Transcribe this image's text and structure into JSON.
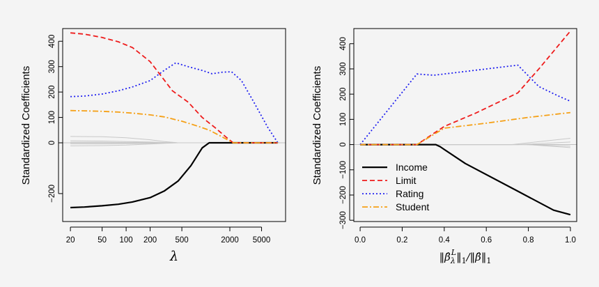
{
  "colors": {
    "income": "#000000",
    "limit": "#ee1c1c",
    "rating": "#1f1ff0",
    "student": "#f5a016",
    "other": "#c8c8c8",
    "zeroline": "#bfbfbf",
    "background": "#f4f4f4"
  },
  "chart_data": [
    {
      "type": "line",
      "ylabel": "Standardized Coefficients",
      "xlabel": "λ",
      "xscale": "log",
      "xlim": [
        16,
        10000
      ],
      "ylim": [
        -310,
        450
      ],
      "xticks": [
        20,
        50,
        100,
        200,
        500,
        2000,
        5000
      ],
      "xtick_labels": [
        "20",
        "50",
        "100",
        "200",
        "500",
        "2000",
        "5000"
      ],
      "yticks": [
        -200,
        0,
        100,
        200,
        300,
        400
      ],
      "ytick_labels": [
        "−200",
        "0",
        "100",
        "200",
        "300",
        "400"
      ],
      "series": [
        {
          "name": "Income",
          "color_key": "income",
          "dash": "solid",
          "width": 2.2,
          "x": [
            20,
            30,
            50,
            80,
            120,
            200,
            300,
            450,
            650,
            900,
            1100,
            1500,
            3000,
            8000
          ],
          "y": [
            -255,
            -253,
            -248,
            -242,
            -233,
            -216,
            -190,
            -150,
            -90,
            -20,
            0,
            0,
            0,
            0
          ]
        },
        {
          "name": "Limit",
          "color_key": "limit",
          "dash": "7,4",
          "width": 1.8,
          "x": [
            20,
            30,
            50,
            80,
            120,
            200,
            280,
            380,
            600,
            900,
            1300,
            1800,
            2200,
            8000
          ],
          "y": [
            433,
            428,
            415,
            398,
            375,
            320,
            260,
            205,
            160,
            100,
            60,
            22,
            0,
            0
          ]
        },
        {
          "name": "Rating",
          "color_key": "rating",
          "dash": "2,3",
          "width": 1.8,
          "x": [
            20,
            30,
            50,
            80,
            120,
            200,
            300,
            420,
            600,
            900,
            1200,
            1600,
            2100,
            2800,
            4000,
            6000,
            8000
          ],
          "y": [
            182,
            184,
            192,
            205,
            220,
            245,
            285,
            315,
            300,
            285,
            272,
            278,
            280,
            245,
            160,
            60,
            0
          ]
        },
        {
          "name": "Student",
          "color_key": "student",
          "dash": "8,3,2,3",
          "width": 1.8,
          "x": [
            20,
            30,
            50,
            80,
            120,
            200,
            300,
            500,
            800,
            1100,
            1500,
            2200,
            8000
          ],
          "y": [
            127,
            126,
            124,
            121,
            117,
            110,
            102,
            85,
            65,
            50,
            28,
            0,
            0
          ]
        },
        {
          "name": "",
          "color_key": "other",
          "dash": "solid",
          "width": 1,
          "x": [
            20,
            50,
            100,
            200,
            300,
            450,
            8000
          ],
          "y": [
            25,
            24,
            20,
            12,
            5,
            0,
            0
          ]
        },
        {
          "name": "",
          "color_key": "other",
          "dash": "solid",
          "width": 1,
          "x": [
            20,
            50,
            100,
            200,
            300,
            450,
            8000
          ],
          "y": [
            8,
            7,
            5,
            3,
            1,
            0,
            0
          ]
        },
        {
          "name": "",
          "color_key": "other",
          "dash": "solid",
          "width": 1,
          "x": [
            20,
            50,
            100,
            200,
            300,
            450,
            8000
          ],
          "y": [
            -4,
            -4,
            -3,
            -2,
            -1,
            0,
            0
          ]
        },
        {
          "name": "",
          "color_key": "other",
          "dash": "solid",
          "width": 1,
          "x": [
            20,
            50,
            100,
            200,
            300,
            450,
            8000
          ],
          "y": [
            -12,
            -11,
            -9,
            -5,
            -2,
            0,
            0
          ]
        },
        {
          "name": "",
          "color_key": "other",
          "dash": "solid",
          "width": 1,
          "x": [
            20,
            50,
            100,
            200,
            300,
            450,
            8000
          ],
          "y": [
            2,
            2,
            1,
            1,
            0,
            0,
            0
          ]
        }
      ]
    },
    {
      "type": "line",
      "ylabel": "Standardized Coefficients",
      "xlabel": "‖β̂λL‖1/‖β̂‖1",
      "xscale": "linear",
      "xlim": [
        -0.03,
        1.03
      ],
      "ylim": [
        -305,
        460
      ],
      "xticks": [
        0.0,
        0.2,
        0.4,
        0.6,
        0.8,
        1.0
      ],
      "xtick_labels": [
        "0.0",
        "0.2",
        "0.4",
        "0.6",
        "0.8",
        "1.0"
      ],
      "yticks": [
        -300,
        -200,
        -100,
        0,
        100,
        200,
        300,
        400
      ],
      "ytick_labels": [
        "−300",
        "−200",
        "−100",
        "0",
        "100",
        "200",
        "300",
        "400"
      ],
      "legend": {
        "position": "bottom-left",
        "items": [
          {
            "label": "Income",
            "color_key": "income",
            "dash": "solid"
          },
          {
            "label": "Limit",
            "color_key": "limit",
            "dash": "7,4"
          },
          {
            "label": "Rating",
            "color_key": "rating",
            "dash": "2,3"
          },
          {
            "label": "Student",
            "color_key": "student",
            "dash": "8,3,2,3"
          }
        ]
      },
      "series": [
        {
          "name": "Income",
          "color_key": "income",
          "dash": "solid",
          "width": 2.2,
          "x": [
            0.0,
            0.36,
            0.38,
            0.5,
            0.75,
            0.92,
            1.0
          ],
          "y": [
            0,
            0,
            -8,
            -75,
            -185,
            -260,
            -278
          ]
        },
        {
          "name": "Limit",
          "color_key": "limit",
          "dash": "7,4",
          "width": 1.8,
          "x": [
            0.0,
            0.27,
            0.4,
            0.55,
            0.75,
            0.85,
            0.95,
            1.0
          ],
          "y": [
            0,
            0,
            72,
            125,
            205,
            300,
            400,
            450
          ]
        },
        {
          "name": "Rating",
          "color_key": "rating",
          "dash": "2,3",
          "width": 1.8,
          "x": [
            0.0,
            0.27,
            0.35,
            0.5,
            0.75,
            0.85,
            0.95,
            1.0
          ],
          "y": [
            0,
            280,
            275,
            290,
            315,
            230,
            190,
            172
          ]
        },
        {
          "name": "Student",
          "color_key": "student",
          "dash": "8,3,2,3",
          "width": 1.8,
          "x": [
            0.0,
            0.27,
            0.4,
            0.6,
            0.8,
            1.0
          ],
          "y": [
            0,
            0,
            65,
            85,
            108,
            127
          ]
        },
        {
          "name": "",
          "color_key": "other",
          "dash": "solid",
          "width": 1,
          "x": [
            0.0,
            0.72,
            1.0
          ],
          "y": [
            0,
            0,
            25
          ]
        },
        {
          "name": "",
          "color_key": "other",
          "dash": "solid",
          "width": 1,
          "x": [
            0.0,
            0.75,
            1.0
          ],
          "y": [
            0,
            0,
            10
          ]
        },
        {
          "name": "",
          "color_key": "other",
          "dash": "solid",
          "width": 1,
          "x": [
            0.0,
            0.78,
            1.0
          ],
          "y": [
            0,
            0,
            -6
          ]
        },
        {
          "name": "",
          "color_key": "other",
          "dash": "solid",
          "width": 1,
          "x": [
            0.0,
            0.8,
            1.0
          ],
          "y": [
            0,
            0,
            -12
          ]
        }
      ]
    }
  ]
}
